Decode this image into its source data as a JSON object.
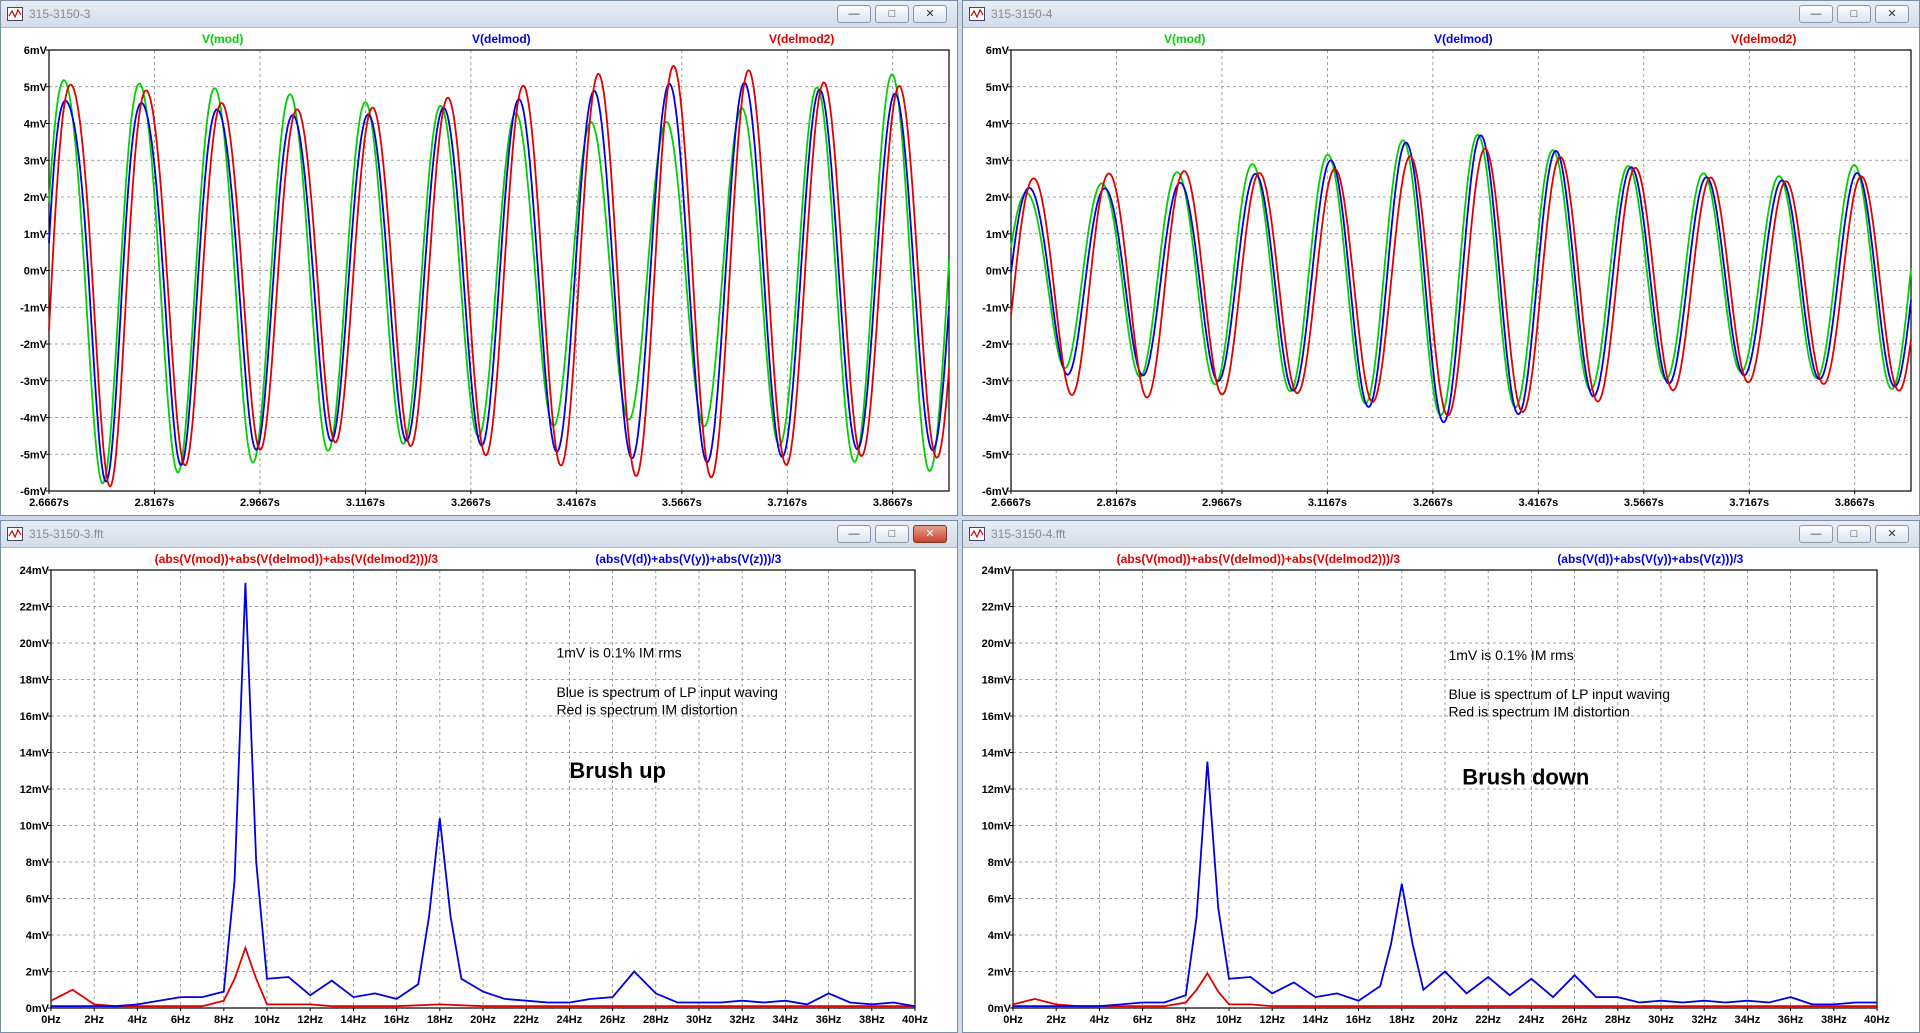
{
  "colors": {
    "green": "#00d000",
    "blue": "#0000e0",
    "red": "#e00000"
  },
  "windows": [
    {
      "id": "w1",
      "title": "315-3150-3",
      "close_red": false,
      "chart_data": {
        "type": "line",
        "ylim": [
          -6,
          6
        ],
        "yunit": "mV",
        "ystep": 1,
        "xlim": [
          2.6667,
          3.9467
        ],
        "xticks": [
          2.6667,
          2.8167,
          2.9667,
          3.1167,
          3.2667,
          3.4167,
          3.5667,
          3.7167,
          3.8667
        ],
        "xunit": "s",
        "xdecimals": 4,
        "grid": true,
        "series": [
          {
            "name": "V(mod)",
            "color": "#00d000",
            "amp": [
              5.6,
              5.4,
              5.2,
              5.0,
              4.7,
              4.6,
              4.4,
              4.1,
              4.0,
              4.3,
              4.9,
              5.3,
              5.5
            ],
            "phase": 0.25,
            "wobble": 0.9
          },
          {
            "name": "V(delmod)",
            "color": "#0000e0",
            "amp": [
              5.3,
              5.1,
              4.8,
              4.5,
              4.4,
              4.5,
              4.7,
              4.9,
              5.1,
              5.2,
              5.0,
              4.8,
              4.9
            ],
            "phase": 0.0,
            "wobble": 1.6
          },
          {
            "name": "V(delmod2)",
            "color": "#e00000",
            "amp": [
              5.6,
              5.4,
              4.9,
              4.6,
              4.5,
              4.7,
              5.0,
              5.3,
              5.6,
              5.6,
              5.2,
              5.0,
              5.1
            ],
            "phase": -0.35,
            "wobble": 1.2
          }
        ],
        "freq_hz": 9.35
      },
      "notes": []
    },
    {
      "id": "w2",
      "title": "315-3150-4",
      "close_red": false,
      "chart_data": {
        "type": "line",
        "ylim": [
          -6,
          6
        ],
        "yunit": "mV",
        "ystep": 1,
        "xlim": [
          2.6667,
          3.9467
        ],
        "xticks": [
          2.6667,
          2.8167,
          2.9667,
          3.1167,
          3.2667,
          3.4167,
          3.5667,
          3.7167,
          3.8667
        ],
        "xunit": "s",
        "xdecimals": 4,
        "grid": true,
        "series": [
          {
            "name": "V(mod)",
            "color": "#00d000",
            "amp": [
              2.3,
              2.5,
              2.8,
              3.0,
              3.2,
              3.6,
              3.9,
              3.5,
              3.0,
              2.8,
              2.6,
              2.9,
              3.2
            ],
            "phase": 0.25,
            "wobble": 0.3,
            "offset": -0.1
          },
          {
            "name": "V(delmod)",
            "color": "#0000e0",
            "amp": [
              2.6,
              2.5,
              2.6,
              2.8,
              3.1,
              3.6,
              4.0,
              3.6,
              3.1,
              2.8,
              2.6,
              2.8,
              3.0
            ],
            "phase": 0.0,
            "wobble": 0.3,
            "offset": -0.2
          },
          {
            "name": "V(delmod2)",
            "color": "#e00000",
            "amp": [
              2.9,
              3.0,
              3.1,
              3.0,
              3.0,
              3.3,
              3.7,
              3.5,
              3.2,
              2.9,
              2.7,
              2.8,
              3.0
            ],
            "phase": -0.35,
            "wobble": 0.3,
            "offset": -0.3
          }
        ],
        "freq_hz": 9.35
      },
      "notes": []
    },
    {
      "id": "w3",
      "title": "315-3150-3.fft",
      "close_red": true,
      "chart_data": {
        "type": "line",
        "ylim": [
          0,
          24
        ],
        "yunit": "mV",
        "ystep": 2,
        "xlim": [
          0,
          40
        ],
        "xticks": [
          0,
          2,
          4,
          6,
          8,
          10,
          12,
          14,
          16,
          18,
          20,
          22,
          24,
          26,
          28,
          30,
          32,
          34,
          36,
          38,
          40
        ],
        "xunit": "Hz",
        "xdecimals": 0,
        "grid": true,
        "series": [
          {
            "name": "(abs(V(mod))+abs(V(delmod))+abs(V(delmod2)))/3",
            "color": "#e00000",
            "x": [
              0,
              1,
              2,
              3,
              4,
              5,
              6,
              7,
              8,
              8.5,
              9,
              9.5,
              10,
              11,
              12,
              13,
              14,
              16,
              18,
              20,
              22,
              24,
              26,
              28,
              30,
              32,
              34,
              36,
              38,
              40
            ],
            "y": [
              0.4,
              1.0,
              0.2,
              0.1,
              0.1,
              0.1,
              0.1,
              0.1,
              0.4,
              1.6,
              3.3,
              1.6,
              0.2,
              0.2,
              0.2,
              0.1,
              0.1,
              0.1,
              0.2,
              0.1,
              0.1,
              0.1,
              0.1,
              0.1,
              0.1,
              0.1,
              0.1,
              0.1,
              0.1,
              0.1
            ]
          },
          {
            "name": "(abs(V(d))+abs(V(y))+abs(V(z)))/3",
            "color": "#0000e0",
            "x": [
              0,
              1,
              2,
              3,
              4,
              5,
              6,
              7,
              8,
              8.5,
              9,
              9.5,
              10,
              11,
              12,
              13,
              14,
              15,
              16,
              17,
              17.5,
              18,
              18.5,
              19,
              20,
              21,
              22,
              23,
              24,
              25,
              26,
              27,
              28,
              29,
              30,
              31,
              32,
              33,
              34,
              35,
              36,
              37,
              38,
              39,
              40
            ],
            "y": [
              0.1,
              0.1,
              0.1,
              0.1,
              0.2,
              0.4,
              0.6,
              0.6,
              0.9,
              7.0,
              23.3,
              8.0,
              1.6,
              1.7,
              0.7,
              1.5,
              0.6,
              0.8,
              0.5,
              1.3,
              5.0,
              10.4,
              5.0,
              1.6,
              0.9,
              0.5,
              0.4,
              0.3,
              0.3,
              0.5,
              0.6,
              2.0,
              0.8,
              0.3,
              0.3,
              0.3,
              0.4,
              0.3,
              0.4,
              0.2,
              0.8,
              0.3,
              0.2,
              0.3,
              0.1
            ]
          }
        ]
      },
      "notes": [
        {
          "text": "1mV is 0.1% IM rms",
          "fx": 0.585,
          "fy": 0.2,
          "big": false
        },
        {
          "text": "Blue is spectrum of LP input waving",
          "fx": 0.585,
          "fy": 0.29,
          "big": false
        },
        {
          "text": "Red is spectrum IM distortion",
          "fx": 0.585,
          "fy": 0.33,
          "big": false
        },
        {
          "text": "Brush up",
          "fx": 0.6,
          "fy": 0.475,
          "big": true
        }
      ]
    },
    {
      "id": "w4",
      "title": "315-3150-4.fft",
      "close_red": false,
      "chart_data": {
        "type": "line",
        "ylim": [
          0,
          24
        ],
        "yunit": "mV",
        "ystep": 2,
        "xlim": [
          0,
          40
        ],
        "xticks": [
          0,
          2,
          4,
          6,
          8,
          10,
          12,
          14,
          16,
          18,
          20,
          22,
          24,
          26,
          28,
          30,
          32,
          34,
          36,
          38,
          40
        ],
        "xunit": "Hz",
        "xdecimals": 0,
        "grid": true,
        "series": [
          {
            "name": "(abs(V(mod))+abs(V(delmod))+abs(V(delmod2)))/3",
            "color": "#e00000",
            "x": [
              0,
              1,
              2,
              3,
              4,
              5,
              6,
              7,
              8,
              8.5,
              9,
              9.5,
              10,
              11,
              12,
              14,
              16,
              18,
              20,
              22,
              24,
              26,
              28,
              30,
              32,
              34,
              36,
              38,
              40
            ],
            "y": [
              0.2,
              0.5,
              0.2,
              0.1,
              0.1,
              0.1,
              0.1,
              0.1,
              0.3,
              1.0,
              1.9,
              0.9,
              0.2,
              0.2,
              0.1,
              0.1,
              0.1,
              0.1,
              0.1,
              0.1,
              0.1,
              0.1,
              0.1,
              0.1,
              0.1,
              0.1,
              0.1,
              0.1,
              0.1
            ]
          },
          {
            "name": "(abs(V(d))+abs(V(y))+abs(V(z)))/3",
            "color": "#0000e0",
            "x": [
              0,
              1,
              2,
              3,
              4,
              5,
              6,
              7,
              8,
              8.5,
              9,
              9.5,
              10,
              11,
              12,
              13,
              14,
              15,
              16,
              17,
              17.5,
              18,
              18.5,
              19,
              20,
              21,
              22,
              23,
              24,
              25,
              26,
              27,
              28,
              29,
              30,
              31,
              32,
              33,
              34,
              35,
              36,
              37,
              38,
              39,
              40
            ],
            "y": [
              0.1,
              0.1,
              0.1,
              0.1,
              0.1,
              0.2,
              0.3,
              0.3,
              0.7,
              5.0,
              13.5,
              5.5,
              1.6,
              1.7,
              0.8,
              1.4,
              0.6,
              0.8,
              0.4,
              1.2,
              3.5,
              6.8,
              3.5,
              1.0,
              2.0,
              0.8,
              1.7,
              0.7,
              1.6,
              0.6,
              1.8,
              0.6,
              0.6,
              0.3,
              0.4,
              0.3,
              0.4,
              0.3,
              0.4,
              0.3,
              0.6,
              0.2,
              0.2,
              0.3,
              0.3
            ]
          }
        ]
      },
      "notes": [
        {
          "text": "1mV is 0.1% IM rms",
          "fx": 0.504,
          "fy": 0.205,
          "big": false
        },
        {
          "text": "Blue is spectrum of LP input waving",
          "fx": 0.504,
          "fy": 0.295,
          "big": false
        },
        {
          "text": "Red is spectrum IM distortion",
          "fx": 0.504,
          "fy": 0.335,
          "big": false
        },
        {
          "text": "Brush down",
          "fx": 0.52,
          "fy": 0.49,
          "big": true
        }
      ]
    }
  ],
  "ctrl_icons": {
    "minimize": "minimize-icon",
    "maximize": "maximize-icon",
    "close": "close-icon"
  }
}
